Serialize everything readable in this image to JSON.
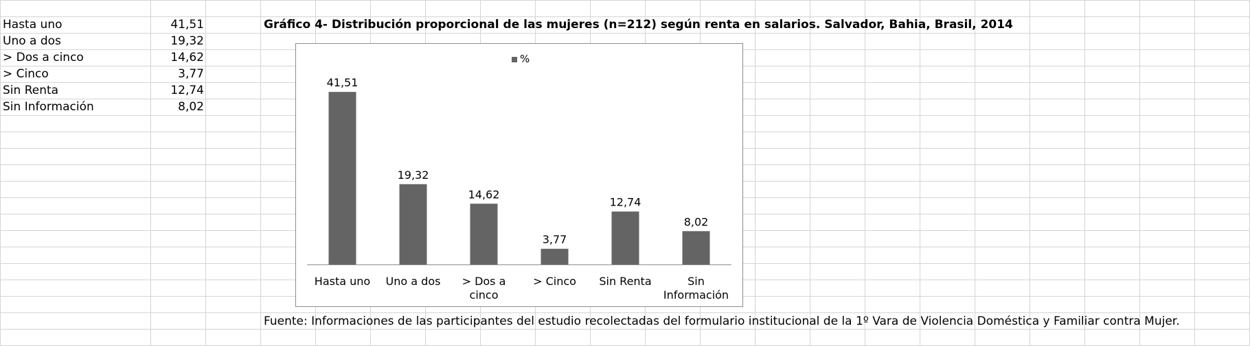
{
  "sheet": {
    "rows": [
      {
        "label": "Hasta uno",
        "value": "41,51"
      },
      {
        "label": "Uno a dos",
        "value": "19,32"
      },
      {
        "label": "> Dos a cinco",
        "value": "14,62"
      },
      {
        "label": "> Cinco",
        "value": "3,77"
      },
      {
        "label": "Sin Renta",
        "value": "12,74"
      },
      {
        "label": "Sin Información",
        "value": "8,02"
      }
    ]
  },
  "chart_title": "Gráfico 4- Distribución proporcional de las mujeres (n=212) según renta en salarios. Salvador, Bahia, Brasil, 2014",
  "source_note": "Fuente: Informaciones de las participantes del estudio recolectadas del formulario institucional de la 1º Vara de Violencia Doméstica y Familiar contra Mujer.",
  "chart_data": {
    "type": "bar",
    "title": "Gráfico 4- Distribución proporcional de las mujeres (n=212) según renta en salarios. Salvador, Bahia, Brasil, 2014",
    "categories": [
      [
        "Hasta uno"
      ],
      [
        "Uno a dos"
      ],
      [
        "> Dos a",
        "cinco"
      ],
      [
        "> Cinco"
      ],
      [
        "Sin Renta"
      ],
      [
        "Sin",
        "Información"
      ]
    ],
    "series": [
      {
        "name": "%",
        "values": [
          41.51,
          19.32,
          14.62,
          3.77,
          12.74,
          8.02
        ]
      }
    ],
    "data_labels": [
      "41,51",
      "19,32",
      "14,62",
      "3,77",
      "12,74",
      "8,02"
    ],
    "ylim": [
      0,
      45
    ],
    "legend": "top-center",
    "grid": false,
    "colors": {
      "bar": "#646464",
      "axis": "#8c8c8c"
    }
  }
}
